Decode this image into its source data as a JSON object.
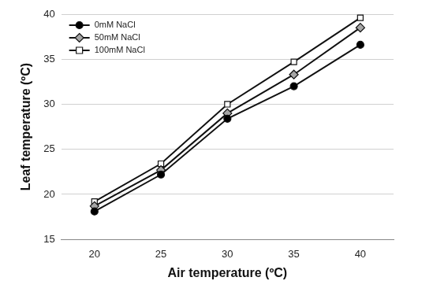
{
  "chart_data": {
    "type": "line",
    "x_label": "Air temperature (ºC)",
    "y_label": "Leaf temperature (ºC)",
    "categories": [
      "20",
      "25",
      "30",
      "35",
      "40"
    ],
    "series": [
      {
        "name": "0mM NaCl",
        "color": "#000000",
        "marker": "circle",
        "values": [
          18.1,
          22.2,
          28.4,
          32.0,
          36.6
        ]
      },
      {
        "name": "50mM NaCl",
        "color": "#a6a6a6",
        "marker": "diamond",
        "values": [
          18.7,
          22.7,
          29.0,
          33.3,
          38.5
        ]
      },
      {
        "name": "100mM NaCl",
        "color": "#ffffff",
        "marker": "square",
        "values": [
          19.2,
          23.4,
          30.0,
          34.7,
          39.6
        ]
      }
    ],
    "ylim": [
      15,
      40
    ],
    "yticks": [
      15,
      20,
      25,
      30,
      35,
      40
    ],
    "grid": "y",
    "legend": "upper left"
  }
}
